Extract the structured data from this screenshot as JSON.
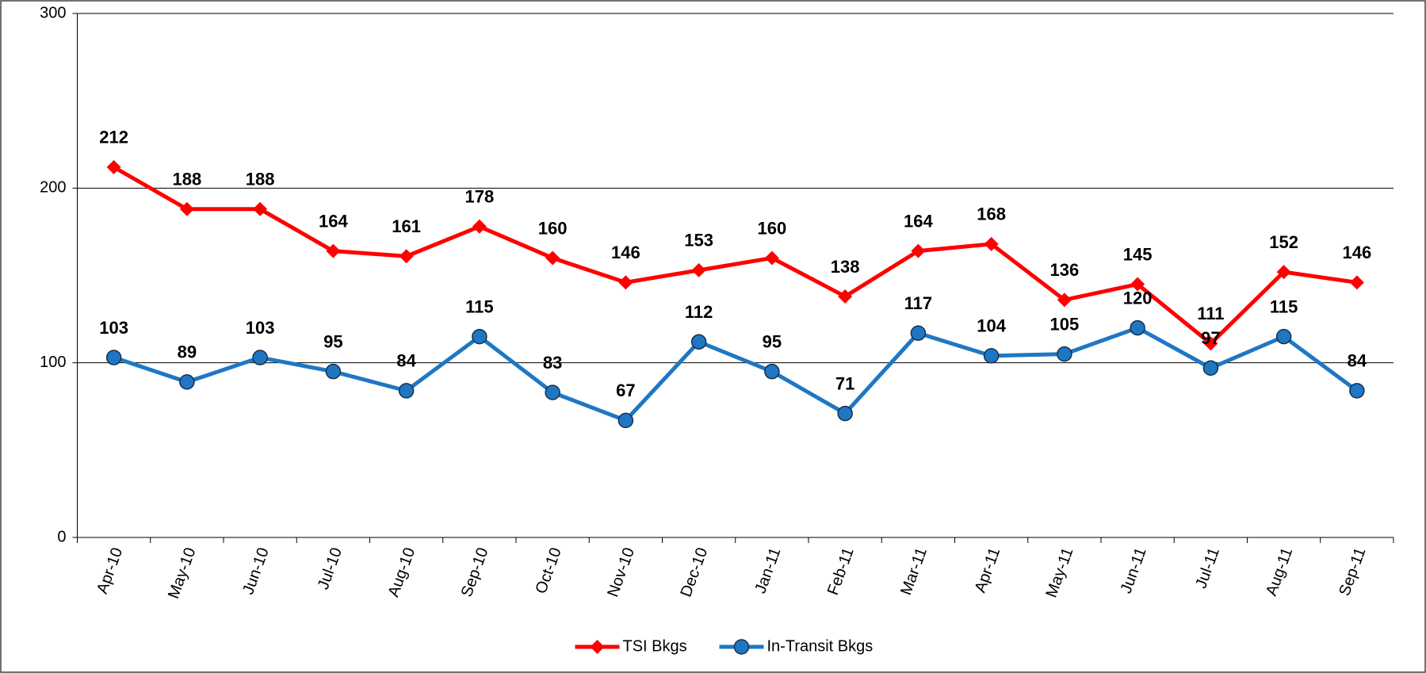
{
  "chart_data": {
    "type": "line",
    "categories": [
      "Apr-10",
      "May-10",
      "Jun-10",
      "Jul-10",
      "Aug-10",
      "Sep-10",
      "Oct-10",
      "Nov-10",
      "Dec-10",
      "Jan-11",
      "Feb-11",
      "Mar-11",
      "Apr-11",
      "May-11",
      "Jun-11",
      "Jul-11",
      "Aug-11",
      "Sep-11"
    ],
    "series": [
      {
        "name": "TSI Bkgs",
        "color": "#ff0000",
        "marker": "diamond",
        "values": [
          212,
          188,
          188,
          164,
          161,
          178,
          160,
          146,
          153,
          160,
          138,
          164,
          168,
          136,
          145,
          111,
          152,
          146
        ]
      },
      {
        "name": "In-Transit Bkgs",
        "color": "#1f77c4",
        "marker": "circle",
        "values": [
          103,
          89,
          103,
          95,
          84,
          115,
          83,
          67,
          112,
          95,
          71,
          117,
          104,
          105,
          120,
          97,
          115,
          84
        ]
      }
    ],
    "ylim": [
      0,
      300
    ],
    "yticks": [
      0,
      100,
      200,
      300
    ],
    "grid": true,
    "legend": "bottom"
  }
}
